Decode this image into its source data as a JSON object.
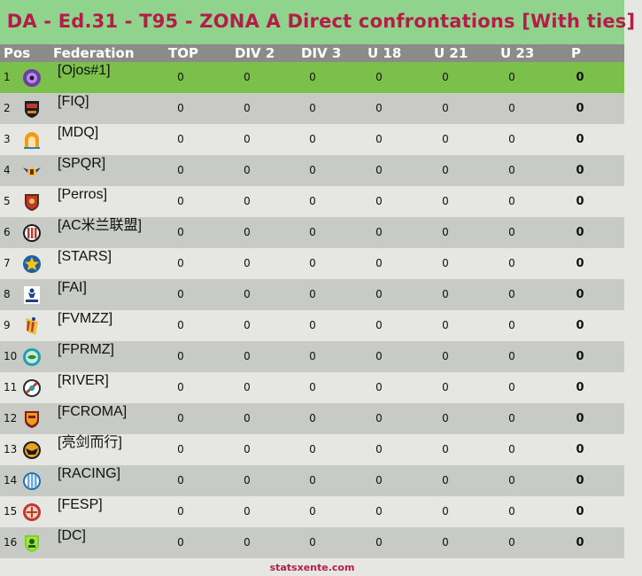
{
  "title": "DA - Ed.31 - T95 - ZONA A Direct confrontations [With ties]",
  "columns": {
    "pos": "Pos",
    "federation": "Federation",
    "top": "TOP",
    "div2": "DIV 2",
    "div3": "DIV 3",
    "u18": "U 18",
    "u21": "U 21",
    "u23": "U 23",
    "p": "P"
  },
  "colors": {
    "title_bar": "#8fd38d",
    "title_text": "#b41d4a",
    "header_bg": "#8a8c89",
    "first_row": "#7bc04a",
    "row_light": "#e6e7e2",
    "row_dark": "#c8cac5"
  },
  "rows": [
    {
      "pos": "1",
      "federation": "[Ojos#1]",
      "logo": "purple-orb-icon",
      "top": "0",
      "div2": "0",
      "div3": "0",
      "u18": "0",
      "u21": "0",
      "u23": "0",
      "p": "0"
    },
    {
      "pos": "2",
      "federation": "[FIQ]",
      "logo": "red-black-crest-icon",
      "top": "0",
      "div2": "0",
      "div3": "0",
      "u18": "0",
      "u21": "0",
      "u23": "0",
      "p": "0"
    },
    {
      "pos": "3",
      "federation": "[MDQ]",
      "logo": "orange-arch-icon",
      "top": "0",
      "div2": "0",
      "div3": "0",
      "u18": "0",
      "u21": "0",
      "u23": "0",
      "p": "0"
    },
    {
      "pos": "4",
      "federation": "[SPQR]",
      "logo": "winged-emblem-icon",
      "top": "0",
      "div2": "0",
      "div3": "0",
      "u18": "0",
      "u21": "0",
      "u23": "0",
      "p": "0"
    },
    {
      "pos": "5",
      "federation": "[Perros]",
      "logo": "dog-shield-icon",
      "top": "0",
      "div2": "0",
      "div3": "0",
      "u18": "0",
      "u21": "0",
      "u23": "0",
      "p": "0"
    },
    {
      "pos": "6",
      "federation": "[AC米兰联盟]",
      "logo": "ac-milan-badge-icon",
      "top": "0",
      "div2": "0",
      "div3": "0",
      "u18": "0",
      "u21": "0",
      "u23": "0",
      "p": "0"
    },
    {
      "pos": "7",
      "federation": "[STARS]",
      "logo": "star-badge-icon",
      "top": "0",
      "div2": "0",
      "div3": "0",
      "u18": "0",
      "u21": "0",
      "u23": "0",
      "p": "0"
    },
    {
      "pos": "8",
      "federation": "[FAI]",
      "logo": "fai-figure-icon",
      "top": "0",
      "div2": "0",
      "div3": "0",
      "u18": "0",
      "u21": "0",
      "u23": "0",
      "p": "0"
    },
    {
      "pos": "9",
      "federation": "[FVMZZ]",
      "logo": "striped-crest-icon",
      "top": "0",
      "div2": "0",
      "div3": "0",
      "u18": "0",
      "u21": "0",
      "u23": "0",
      "p": "0"
    },
    {
      "pos": "10",
      "federation": "[FPRMZ]",
      "logo": "globe-badge-icon",
      "top": "0",
      "div2": "0",
      "div3": "0",
      "u18": "0",
      "u21": "0",
      "u23": "0",
      "p": "0"
    },
    {
      "pos": "11",
      "federation": "[RIVER]",
      "logo": "river-badge-icon",
      "top": "0",
      "div2": "0",
      "div3": "0",
      "u18": "0",
      "u21": "0",
      "u23": "0",
      "p": "0"
    },
    {
      "pos": "12",
      "federation": "[FCROMA]",
      "logo": "roma-shield-icon",
      "top": "0",
      "div2": "0",
      "div3": "0",
      "u18": "0",
      "u21": "0",
      "u23": "0",
      "p": "0"
    },
    {
      "pos": "13",
      "federation": "[亮剑而行]",
      "logo": "eagle-circle-icon",
      "top": "0",
      "div2": "0",
      "div3": "0",
      "u18": "0",
      "u21": "0",
      "u23": "0",
      "p": "0"
    },
    {
      "pos": "14",
      "federation": "[RACING]",
      "logo": "racing-stripes-icon",
      "top": "0",
      "div2": "0",
      "div3": "0",
      "u18": "0",
      "u21": "0",
      "u23": "0",
      "p": "0"
    },
    {
      "pos": "15",
      "federation": "[FESP]",
      "logo": "red-ball-icon",
      "top": "0",
      "div2": "0",
      "div3": "0",
      "u18": "0",
      "u21": "0",
      "u23": "0",
      "p": "0"
    },
    {
      "pos": "16",
      "federation": "[DC]",
      "logo": "green-dc-shield-icon",
      "top": "0",
      "div2": "0",
      "div3": "0",
      "u18": "0",
      "u21": "0",
      "u23": "0",
      "p": "0"
    }
  ],
  "footer": "statsxente.com"
}
